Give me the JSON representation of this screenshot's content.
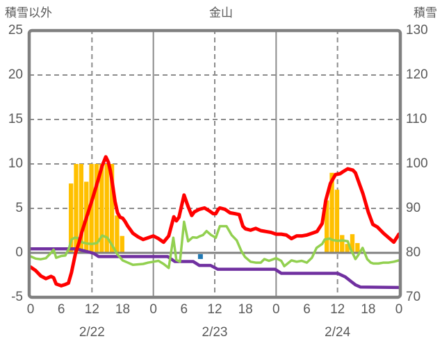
{
  "header": {
    "left_axis_title": "積雪以外",
    "title": "金山",
    "right_axis_title": "積雪"
  },
  "chart_data": {
    "type": "line",
    "title": "金山",
    "left_axis": {
      "label": "積雪以外",
      "min": -5,
      "max": 25,
      "ticks": [
        25,
        20,
        15,
        10,
        5,
        0,
        -5
      ]
    },
    "right_axis": {
      "label": "積雪",
      "min": 70,
      "max": 130,
      "ticks": [
        130,
        120,
        110,
        100,
        90,
        80,
        70
      ]
    },
    "x_axis": {
      "hours_total": 72,
      "tick_step": 6,
      "tick_labels": [
        "0",
        "6",
        "12",
        "18",
        "0",
        "6",
        "12",
        "18",
        "0",
        "6",
        "12",
        "18",
        "0"
      ],
      "date_labels": [
        {
          "label": "2/22",
          "h": 12
        },
        {
          "label": "2/23",
          "h": 36
        },
        {
          "label": "2/24",
          "h": 60
        }
      ],
      "solid_gridlines_at": [
        24,
        48
      ],
      "dashed_gridlines_at": [
        12,
        36,
        60
      ]
    },
    "dashed_gridline_values": [
      20,
      15,
      10,
      5
    ],
    "zero_line_value": 0,
    "colors": {
      "frame": "#808080",
      "grid": "#8c8c8c",
      "text": "#595959",
      "background": "#ffffff",
      "bars": "#FFC000",
      "red_line": "#FF0000",
      "green_line": "#92D050",
      "purple_line": "#7030A0",
      "blue_marker": "#1F78B4"
    },
    "series": [
      {
        "name": "orange-bars",
        "type": "bar",
        "color": "#FFC000",
        "points": [
          [
            8,
            7.8
          ],
          [
            9,
            10
          ],
          [
            10,
            10
          ],
          [
            11,
            8
          ],
          [
            12,
            10
          ],
          [
            13,
            10
          ],
          [
            14,
            10
          ],
          [
            15,
            10
          ],
          [
            16,
            10
          ],
          [
            17,
            4.2
          ],
          [
            18,
            1.9
          ],
          [
            58,
            5.9
          ],
          [
            59,
            9
          ],
          [
            60,
            7.1
          ],
          [
            61,
            2
          ],
          [
            62,
            1
          ],
          [
            63,
            2.1
          ],
          [
            64,
            1.1
          ]
        ]
      },
      {
        "name": "purple-line",
        "type": "line",
        "color": "#7030A0",
        "width": 4.5,
        "points": [
          [
            0,
            0.45
          ],
          [
            8.9,
            0.45
          ],
          [
            12.3,
            -0.05
          ],
          [
            13.3,
            -0.42
          ],
          [
            26.8,
            -0.42
          ],
          [
            28.2,
            -0.98
          ],
          [
            31.8,
            -0.98
          ],
          [
            33,
            -1.42
          ],
          [
            35.2,
            -1.42
          ],
          [
            36.6,
            -1.85
          ],
          [
            47.8,
            -1.85
          ],
          [
            49,
            -2.3
          ],
          [
            60,
            -2.3
          ],
          [
            61.5,
            -2.7
          ],
          [
            63.5,
            -3.6
          ],
          [
            64.5,
            -3.85
          ],
          [
            72,
            -3.9
          ]
        ]
      },
      {
        "name": "green-line",
        "type": "line",
        "color": "#92D050",
        "width": 3.5,
        "points": [
          [
            0,
            -0.4
          ],
          [
            1,
            -0.65
          ],
          [
            2,
            -0.72
          ],
          [
            3,
            -0.6
          ],
          [
            4,
            0
          ],
          [
            4.5,
            0.35
          ],
          [
            5,
            -0.55
          ],
          [
            6,
            -0.35
          ],
          [
            6.8,
            -0.3
          ],
          [
            7.5,
            0.5
          ],
          [
            8,
            1.5
          ],
          [
            8.7,
            1.72
          ],
          [
            9.5,
            1.6
          ],
          [
            10,
            1.2
          ],
          [
            11,
            1.05
          ],
          [
            12,
            1
          ],
          [
            13,
            1.1
          ],
          [
            14,
            1.95
          ],
          [
            15,
            1.7
          ],
          [
            16,
            0.8
          ],
          [
            17,
            -0.2
          ],
          [
            18,
            -0.85
          ],
          [
            19,
            -1.1
          ],
          [
            20,
            -1.35
          ],
          [
            21,
            -1.3
          ],
          [
            22,
            -1.25
          ],
          [
            23,
            -1.1
          ],
          [
            24,
            -1
          ],
          [
            25,
            -0.9
          ],
          [
            26,
            -1.25
          ],
          [
            27,
            -1.7
          ],
          [
            27.9,
            1.7
          ],
          [
            28.5,
            -0.8
          ],
          [
            29.2,
            -1
          ],
          [
            30,
            3.5
          ],
          [
            30.8,
            1.3
          ],
          [
            31.7,
            1.75
          ],
          [
            32.5,
            1.7
          ],
          [
            33,
            1.85
          ],
          [
            33.7,
            2
          ],
          [
            34.4,
            2.45
          ],
          [
            35.3,
            2
          ],
          [
            36.2,
            1.7
          ],
          [
            37,
            3
          ],
          [
            38.3,
            3
          ],
          [
            39.3,
            2
          ],
          [
            40.3,
            1.4
          ],
          [
            41.2,
            0.2
          ],
          [
            41.9,
            -0.45
          ],
          [
            43,
            -1
          ],
          [
            44,
            -1.1
          ],
          [
            45,
            -1.1
          ],
          [
            45.7,
            -0.7
          ],
          [
            46.6,
            -0.9
          ],
          [
            48,
            -0.6
          ],
          [
            49,
            -0.9
          ],
          [
            49.6,
            -1.5
          ],
          [
            51,
            -0.85
          ],
          [
            52,
            -1
          ],
          [
            53,
            -0.9
          ],
          [
            54,
            -1.1
          ],
          [
            55,
            -0.55
          ],
          [
            55.9,
            0.56
          ],
          [
            57,
            1
          ],
          [
            57.5,
            1.5
          ],
          [
            58.5,
            1.6
          ],
          [
            59,
            1.45
          ],
          [
            60,
            1.35
          ],
          [
            61,
            1.4
          ],
          [
            62,
            1.3
          ],
          [
            62.5,
            0.5
          ],
          [
            63,
            -0.1
          ],
          [
            63.5,
            -0.7
          ],
          [
            64,
            -0.3
          ],
          [
            64.9,
            0.56
          ],
          [
            65.8,
            -0.7
          ],
          [
            66.5,
            -1.1
          ],
          [
            67,
            -1.2
          ],
          [
            68,
            -1.2
          ],
          [
            69,
            -1.1
          ],
          [
            70,
            -1.1
          ],
          [
            71,
            -1
          ],
          [
            72,
            -0.85
          ]
        ]
      },
      {
        "name": "red-line",
        "type": "line",
        "color": "#FF0000",
        "width": 5,
        "points": [
          [
            0,
            -1.6
          ],
          [
            1,
            -2
          ],
          [
            2,
            -2.6
          ],
          [
            3,
            -2.9
          ],
          [
            4,
            -2.65
          ],
          [
            4.5,
            -2.8
          ],
          [
            5,
            -3.5
          ],
          [
            6,
            -3.7
          ],
          [
            6.8,
            -3.55
          ],
          [
            7.4,
            -3.4
          ],
          [
            8,
            -2.2
          ],
          [
            8.8,
            0
          ],
          [
            9.5,
            1.2
          ],
          [
            10,
            2.3
          ],
          [
            11,
            4.1
          ],
          [
            12,
            5.9
          ],
          [
            13,
            7.8
          ],
          [
            14,
            9.8
          ],
          [
            14.7,
            10.8
          ],
          [
            15.2,
            10.2
          ],
          [
            15.6,
            9.2
          ],
          [
            16,
            7.8
          ],
          [
            16.5,
            5.8
          ],
          [
            17,
            4.5
          ],
          [
            17.5,
            4
          ],
          [
            18,
            3.9
          ],
          [
            18.5,
            3.5
          ],
          [
            19,
            3
          ],
          [
            19.5,
            2.6
          ],
          [
            20,
            2.2
          ],
          [
            21,
            1.8
          ],
          [
            22,
            1.5
          ],
          [
            23,
            1.7
          ],
          [
            24,
            1.9
          ],
          [
            25,
            1.6
          ],
          [
            26,
            1.2
          ],
          [
            27,
            1.9
          ],
          [
            28,
            4.05
          ],
          [
            28.5,
            3.6
          ],
          [
            29,
            4
          ],
          [
            30,
            6.5
          ],
          [
            30.8,
            5.2
          ],
          [
            31.5,
            4.2
          ],
          [
            32,
            4.6
          ],
          [
            33,
            4.9
          ],
          [
            34,
            5.05
          ],
          [
            35,
            4.7
          ],
          [
            35.7,
            4.4
          ],
          [
            36.2,
            4.4
          ],
          [
            36.7,
            4.9
          ],
          [
            37,
            5.05
          ],
          [
            38,
            4.9
          ],
          [
            39,
            4.5
          ],
          [
            40,
            4.4
          ],
          [
            40.8,
            4.3
          ],
          [
            41.5,
            3
          ],
          [
            42,
            2.7
          ],
          [
            43,
            2.55
          ],
          [
            44,
            2.75
          ],
          [
            45,
            2.5
          ],
          [
            46,
            2.4
          ],
          [
            47,
            2.3
          ],
          [
            48,
            2.1
          ],
          [
            49,
            2.1
          ],
          [
            50,
            2
          ],
          [
            51,
            1.6
          ],
          [
            52,
            1.9
          ],
          [
            53,
            1.9
          ],
          [
            54,
            2
          ],
          [
            55,
            2.2
          ],
          [
            56,
            2.4
          ],
          [
            57,
            3.3
          ],
          [
            57.7,
            5.9
          ],
          [
            58.6,
            7.8
          ],
          [
            59.6,
            8.8
          ],
          [
            60.5,
            8.9
          ],
          [
            61,
            9.1
          ],
          [
            62,
            9.45
          ],
          [
            63,
            9.3
          ],
          [
            63.5,
            9
          ],
          [
            64,
            8.2
          ],
          [
            65,
            6.6
          ],
          [
            66,
            4.6
          ],
          [
            66.9,
            3.2
          ],
          [
            67.8,
            2.9
          ],
          [
            69,
            2.2
          ],
          [
            70,
            1.7
          ],
          [
            71,
            1.2
          ],
          [
            72,
            2.1
          ]
        ]
      },
      {
        "name": "blue-marker",
        "type": "square",
        "color": "#1F78B4",
        "size": 7,
        "points": [
          [
            33.2,
            -0.42
          ]
        ]
      }
    ]
  }
}
